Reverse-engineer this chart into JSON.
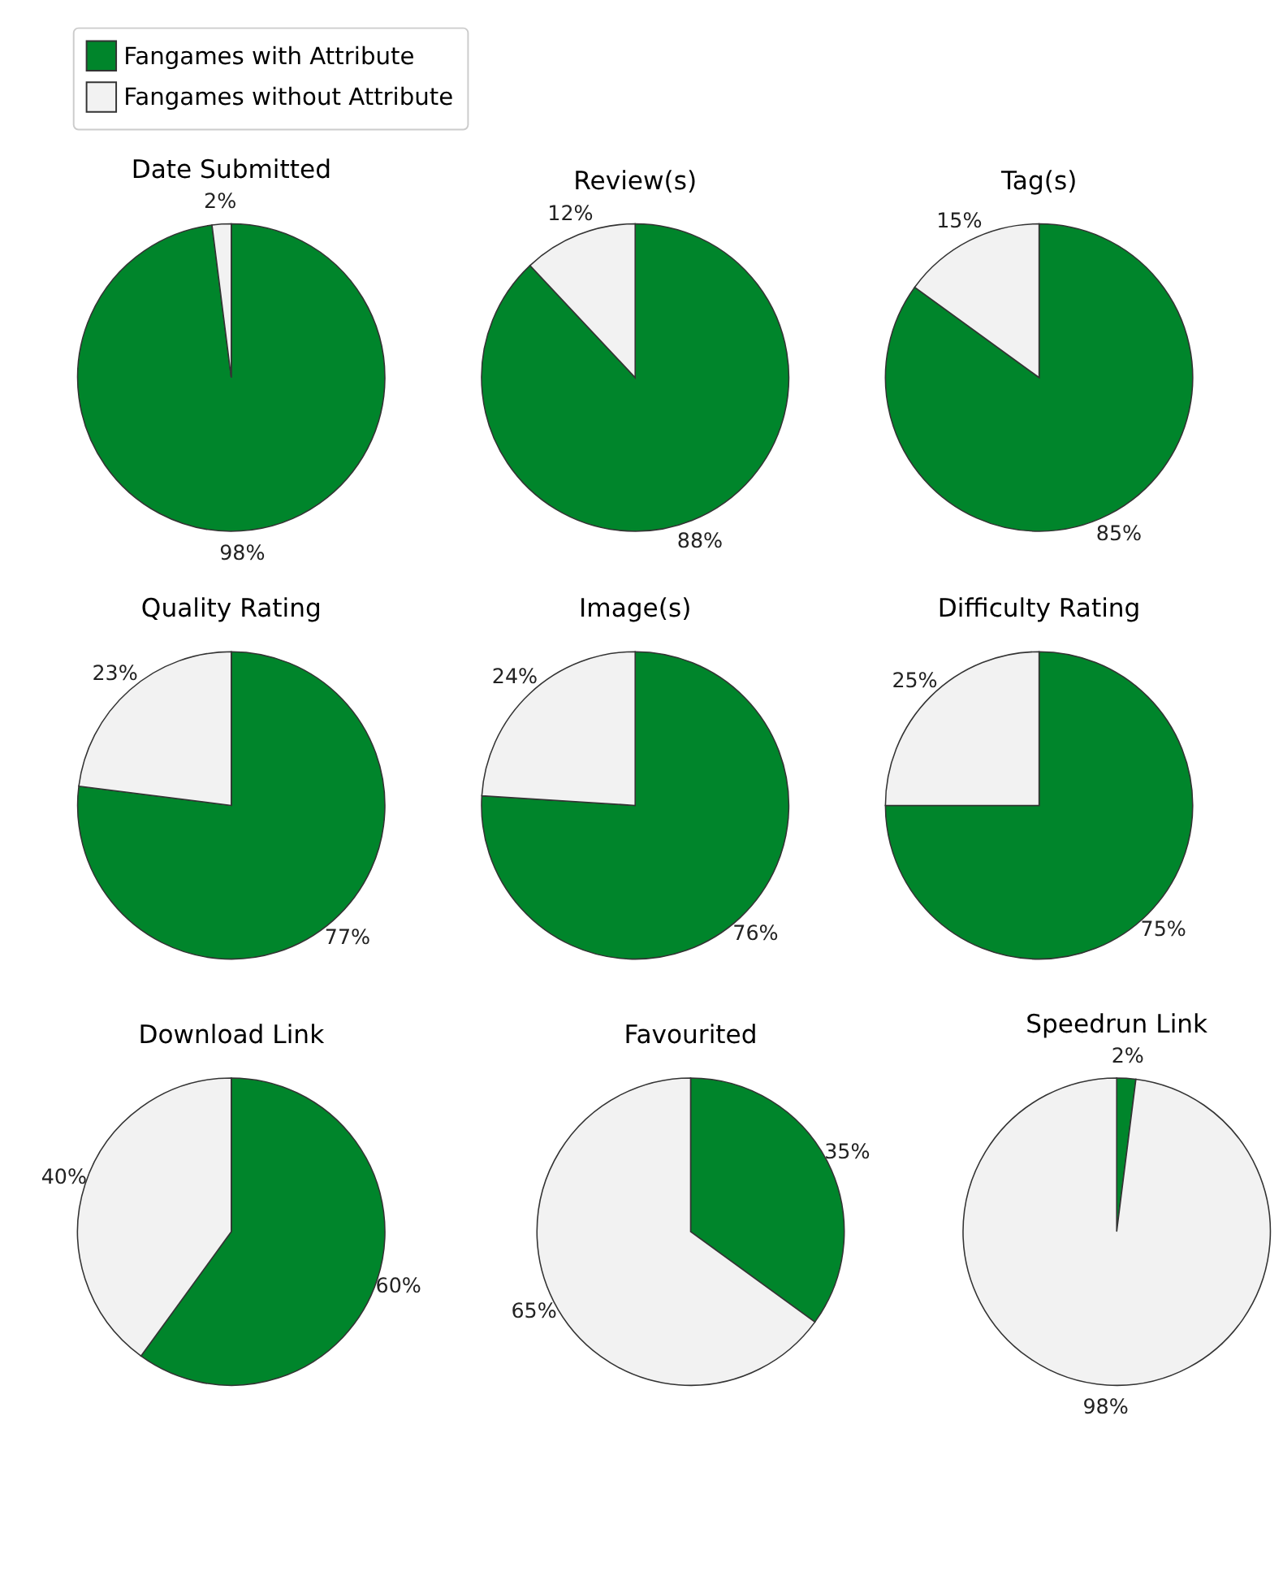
{
  "chart_data": [
    {
      "type": "pie",
      "title": "Date Submitted",
      "categories": [
        "Fangames with Attribute",
        "Fangames without Attribute"
      ],
      "values": [
        98,
        2
      ],
      "value_labels": [
        "98%",
        "2%"
      ],
      "colors": [
        "#00852b",
        "#f2f2f2"
      ],
      "legend": "top"
    },
    {
      "type": "pie",
      "title": "Review(s)",
      "categories": [
        null,
        null
      ],
      "values": [
        88,
        12
      ],
      "value_labels": [
        "88%",
        "12%"
      ],
      "colors": [
        "#00852b",
        "#f2f2f2"
      ]
    },
    {
      "type": "pie",
      "title": "Tag(s)",
      "categories": [
        null,
        null
      ],
      "values": [
        85,
        15
      ],
      "value_labels": [
        "85%",
        "15%"
      ],
      "colors": [
        "#00852b",
        "#f2f2f2"
      ]
    },
    {
      "type": "pie",
      "title": "Quality Rating",
      "categories": [
        null,
        null
      ],
      "values": [
        77,
        23
      ],
      "value_labels": [
        "77%",
        "23%"
      ],
      "colors": [
        "#00852b",
        "#f2f2f2"
      ]
    },
    {
      "type": "pie",
      "title": "Image(s)",
      "categories": [
        null,
        null
      ],
      "values": [
        76,
        24
      ],
      "value_labels": [
        "76%",
        "24%"
      ],
      "colors": [
        "#00852b",
        "#f2f2f2"
      ]
    },
    {
      "type": "pie",
      "title": "Difficulty Rating",
      "categories": [
        null,
        null
      ],
      "values": [
        75,
        25
      ],
      "value_labels": [
        "75%",
        "25%"
      ],
      "colors": [
        "#00852b",
        "#f2f2f2"
      ]
    },
    {
      "type": "pie",
      "title": "Download Link",
      "categories": [
        null,
        null
      ],
      "values": [
        60,
        40
      ],
      "value_labels": [
        "60%",
        "40%"
      ],
      "colors": [
        "#00852b",
        "#f2f2f2"
      ]
    },
    {
      "type": "pie",
      "title": "Favourited",
      "categories": [
        null,
        null
      ],
      "values": [
        35,
        65
      ],
      "value_labels": [
        "35%",
        "65%"
      ],
      "colors": [
        "#00852b",
        "#f2f2f2"
      ]
    },
    {
      "type": "pie",
      "title": "Speedrun Link",
      "categories": [
        null,
        null
      ],
      "values": [
        2,
        98
      ],
      "value_labels": [
        "2%",
        "98%"
      ],
      "colors": [
        "#00852b",
        "#f2f2f2"
      ]
    }
  ]
}
